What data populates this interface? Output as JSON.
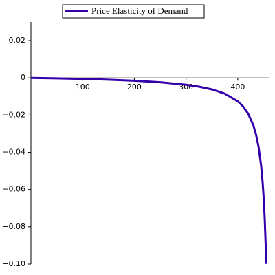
{
  "chart_data": {
    "type": "line",
    "x": [
      0,
      50,
      100,
      150,
      200,
      250,
      300,
      325,
      350,
      375,
      400,
      410,
      420,
      430,
      435,
      440,
      445,
      448,
      450,
      452,
      454,
      455
    ],
    "series": [
      {
        "name": "Price Elasticity of Demand",
        "color": "#3300aa",
        "values": [
          0,
          -0.000244,
          -0.000555,
          -0.000964,
          -0.00153,
          -0.00236,
          -0.00369,
          -0.00472,
          -0.00619,
          -0.00849,
          -0.01259,
          -0.01528,
          -0.0192,
          -0.0254,
          -0.0301,
          -0.0367,
          -0.0468,
          -0.0559,
          -0.064,
          -0.0748,
          -0.0899,
          -0.0999
        ]
      }
    ],
    "xlim": [
      0,
      460
    ],
    "ylim": [
      -0.1,
      0.03
    ],
    "xticks": [
      100,
      200,
      300,
      400
    ],
    "yticks": [
      {
        "value": -0.1,
        "label": "−0.10"
      },
      {
        "value": -0.08,
        "label": "−0.08"
      },
      {
        "value": -0.06,
        "label": "−0.06"
      },
      {
        "value": -0.04,
        "label": "−0.04"
      },
      {
        "value": -0.02,
        "label": "−0.02"
      },
      0,
      0.02
    ],
    "legend": "top"
  }
}
